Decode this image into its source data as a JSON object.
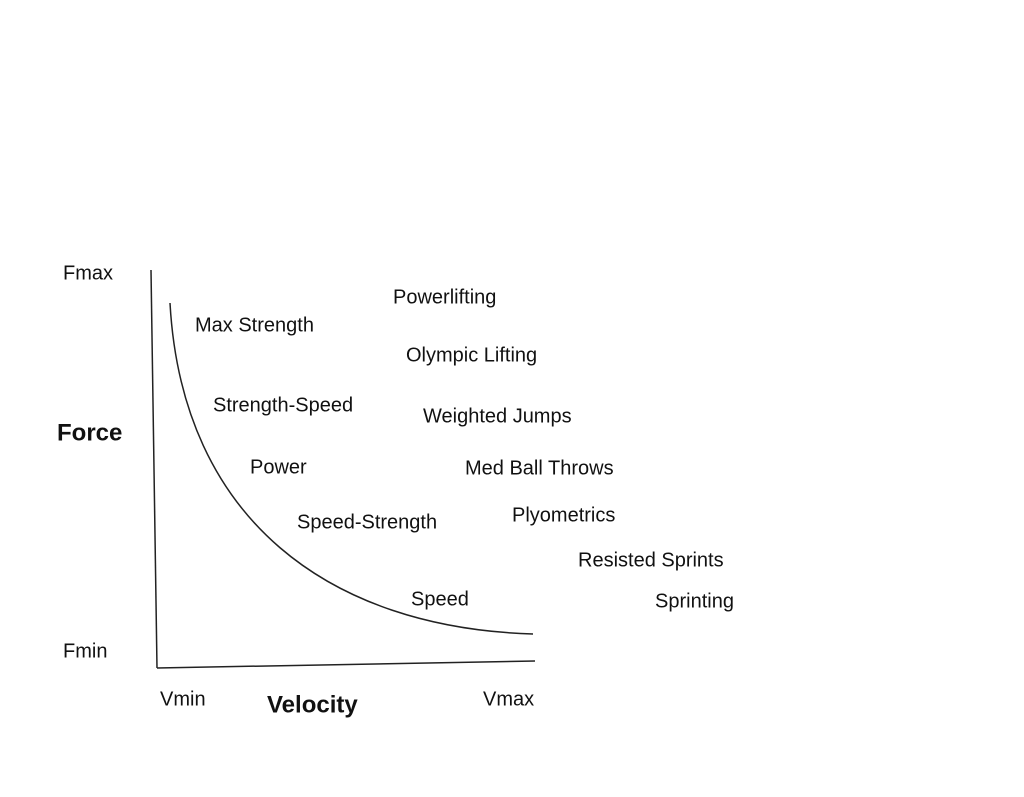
{
  "axes": {
    "y_max": "Fmax",
    "y_label": "Force",
    "y_min": "Fmin",
    "x_min": "Vmin",
    "x_label": "Velocity",
    "x_max": "Vmax"
  },
  "zones": [
    "Max Strength",
    "Strength-Speed",
    "Power",
    "Speed-Strength",
    "Speed"
  ],
  "methods": [
    "Powerlifting",
    "Olympic Lifting",
    "Weighted Jumps",
    "Med Ball Throws",
    "Plyometrics",
    "Resisted Sprints",
    "Sprinting"
  ]
}
